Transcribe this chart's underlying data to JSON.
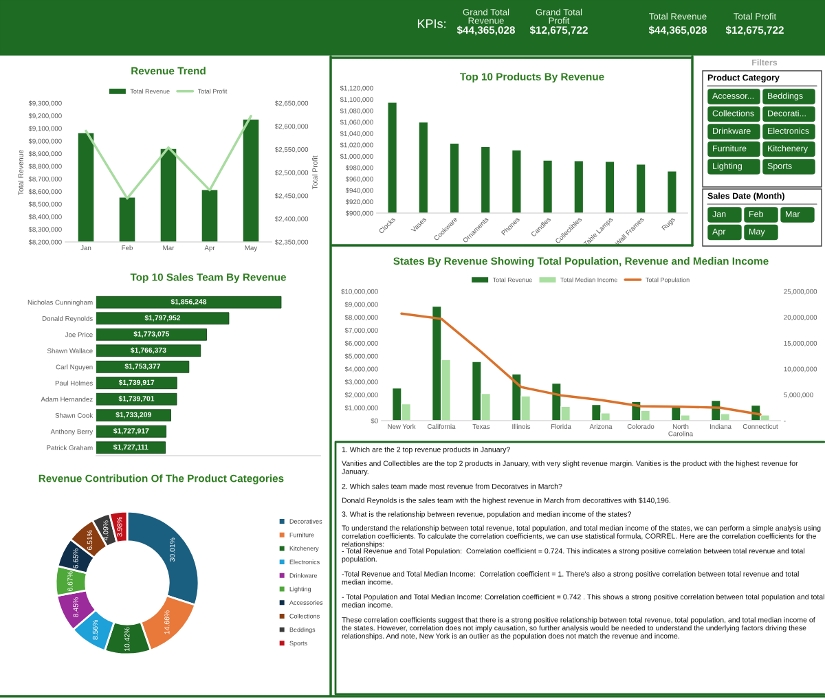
{
  "chart_data": [
    {
      "type": "other",
      "title": "KPIs:",
      "annotations": [
        "Grand Total\nRevenue",
        "$44,365,028",
        "Grand Total\nProfit",
        "$12,675,722",
        "Total Revenue",
        "$44,365,028",
        "Total Profit",
        "$12,675,722"
      ]
    },
    {
      "type": "bar",
      "title": "Revenue Trend",
      "ylabel": "Total Revenue",
      "y2label": "Total Profit",
      "categories": [
        "Jan",
        "Feb",
        "Mar",
        "Apr",
        "May"
      ],
      "series": [
        {
          "name": "Total Revenue",
          "color": "#1e6b23",
          "values": [
            9065000,
            8555000,
            8940000,
            8615000,
            9173000
          ]
        },
        {
          "name": "Total Profit",
          "type": "line",
          "axis": "y2",
          "color": "#a8dba0",
          "values": [
            2590000,
            2444000,
            2554000,
            2462000,
            2622000
          ]
        }
      ],
      "ylim": [
        8200000,
        9300000
      ],
      "yticks": [
        {
          "value": 8200000,
          "label": "$8,200,000"
        },
        {
          "value": 8300000,
          "label": "$8,300,000"
        },
        {
          "value": 8400000,
          "label": "$8,400,000"
        },
        {
          "value": 8500000,
          "label": "$8,500,000"
        },
        {
          "value": 8600000,
          "label": "$8,600,000"
        },
        {
          "value": 8700000,
          "label": "$8,700,000"
        },
        {
          "value": 8800000,
          "label": "$8,800,000"
        },
        {
          "value": 8900000,
          "label": "$8,900,000"
        },
        {
          "value": 9000000,
          "label": "$9,000,000"
        },
        {
          "value": 9100000,
          "label": "$9,100,000"
        },
        {
          "value": 9200000,
          "label": "$9,200,000"
        },
        {
          "value": 9300000,
          "label": "$9,300,000"
        }
      ],
      "y2lim": [
        2350000,
        2650000
      ],
      "y2ticks": [
        {
          "value": 2350000,
          "label": "$2,350,000"
        },
        {
          "value": 2400000,
          "label": "$2,400,000"
        },
        {
          "value": 2450000,
          "label": "$2,450,000"
        },
        {
          "value": 2500000,
          "label": "$2,500,000"
        },
        {
          "value": 2550000,
          "label": "$2,550,000"
        },
        {
          "value": 2600000,
          "label": "$2,600,000"
        },
        {
          "value": 2650000,
          "label": "$2,650,000"
        }
      ],
      "legend": "top"
    },
    {
      "type": "bar",
      "title": "Top 10 Products By Revenue",
      "categories": [
        "Clocks",
        "Vases",
        "Cookware",
        "Ornaments",
        "Phones",
        "Candles",
        "Collectibles",
        "Table Lamps",
        "Wall Frames",
        "Rugs"
      ],
      "values": [
        1095000,
        1060000,
        1023000,
        1017000,
        1011000,
        993000,
        992000,
        991000,
        986000,
        974000
      ],
      "color": "#1e6b23",
      "ylim": [
        900000,
        1120000
      ],
      "yticks": [
        {
          "value": 900000,
          "label": "$900,000"
        },
        {
          "value": 920000,
          "label": "$920,000"
        },
        {
          "value": 940000,
          "label": "$940,000"
        },
        {
          "value": 960000,
          "label": "$960,000"
        },
        {
          "value": 980000,
          "label": "$980,000"
        },
        {
          "value": 1000000,
          "label": "$1,000,000"
        },
        {
          "value": 1020000,
          "label": "$1,020,000"
        },
        {
          "value": 1040000,
          "label": "$1,040,000"
        },
        {
          "value": 1060000,
          "label": "$1,060,000"
        },
        {
          "value": 1080000,
          "label": "$1,080,000"
        },
        {
          "value": 1100000,
          "label": "$1,100,000"
        },
        {
          "value": 1120000,
          "label": "$1,120,000"
        }
      ]
    },
    {
      "type": "other",
      "title": "Filters",
      "subtitle": "Product Category",
      "annotations": [
        "Accessor...",
        "Beddings",
        "Collections",
        "Decorati...",
        "Drinkware",
        "Electronics",
        "Furniture",
        "Kitchenery",
        "Lighting",
        "Sports"
      ]
    },
    {
      "type": "other",
      "subtitle": "Sales Date (Month)",
      "annotations": [
        "Jan",
        "Feb",
        "Mar",
        "Apr",
        "May"
      ]
    },
    {
      "type": "bar",
      "orientation": "horizontal",
      "title": "Top 10 Sales Team By Revenue",
      "categories": [
        "Nicholas Cunningham",
        "Donald Reynolds",
        "Joe Price",
        "Shawn Wallace",
        "Carl Nguyen",
        "Paul Holmes",
        "Adam Hernandez",
        "Shawn Cook",
        "Anthony Berry",
        "Patrick Graham"
      ],
      "values": [
        1856248,
        1797952,
        1773075,
        1766373,
        1753377,
        1739917,
        1739701,
        1733209,
        1727917,
        1727111
      ],
      "color": "#1e6b23",
      "value_labels": [
        "$1,856,248",
        "$1,797,952",
        "$1,773,075",
        "$1,766,373",
        "$1,753,377",
        "$1,739,917",
        "$1,739,701",
        "$1,733,209",
        "$1,727,917",
        "$1,727,111"
      ],
      "xlim": [
        1650000,
        1900000
      ],
      "tick_labels": "y"
    },
    {
      "type": "bar",
      "title": "States By Revenue Showing Total Population, Revenue and Median Income",
      "categories": [
        "New York",
        "California",
        "Texas",
        "Illinois",
        "Florida",
        "Arizona",
        "Colorado",
        "North\nCarolina",
        "Indiana",
        "Connecticut"
      ],
      "series": [
        {
          "name": "Total Revenue",
          "color": "#1e6b23",
          "values": [
            2520000,
            8850000,
            4570000,
            3620000,
            2890000,
            1250000,
            1470000,
            1050000,
            1560000,
            1200000
          ]
        },
        {
          "name": "Total Median Income",
          "color": "#a9dfa0",
          "values": [
            1300000,
            4720000,
            2100000,
            1910000,
            1100000,
            590000,
            780000,
            440000,
            540000,
            440000
          ]
        },
        {
          "name": "Total Population",
          "type": "line",
          "axis": "y2",
          "color": "#d9722c",
          "values": [
            20700000,
            19700000,
            13300000,
            6500000,
            4900000,
            4000000,
            2800000,
            2700000,
            2500000,
            1200000
          ]
        }
      ],
      "ylim": [
        0,
        10000000
      ],
      "yticks": [
        {
          "value": 0,
          "label": "$0"
        },
        {
          "value": 1000000,
          "label": "$1,000,000"
        },
        {
          "value": 2000000,
          "label": "$2,000,000"
        },
        {
          "value": 3000000,
          "label": "$3,000,000"
        },
        {
          "value": 4000000,
          "label": "$4,000,000"
        },
        {
          "value": 5000000,
          "label": "$5,000,000"
        },
        {
          "value": 6000000,
          "label": "$6,000,000"
        },
        {
          "value": 7000000,
          "label": "$7,000,000"
        },
        {
          "value": 8000000,
          "label": "$8,000,000"
        },
        {
          "value": 9000000,
          "label": "$9,000,000"
        },
        {
          "value": 10000000,
          "label": "$10,000,000"
        }
      ],
      "y2lim": [
        0,
        25000000
      ],
      "y2ticks": [
        {
          "value": 0,
          "label": "-"
        },
        {
          "value": 5000000,
          "label": "5,000,000"
        },
        {
          "value": 10000000,
          "label": "10,000,000"
        },
        {
          "value": 15000000,
          "label": "15,000,000"
        },
        {
          "value": 20000000,
          "label": "20,000,000"
        },
        {
          "value": 25000000,
          "label": "25,000,000"
        }
      ],
      "legend": "top"
    },
    {
      "type": "donut",
      "title": "Revenue Contribution Of The Product Categories",
      "categories": [
        "Decoratives",
        "Furniture",
        "Kitchenery",
        "Electronics",
        "Drinkware",
        "Lighting",
        "Accessories",
        "Collections",
        "Beddings",
        "Sports"
      ],
      "values": [
        30.01,
        14.66,
        10.42,
        8.56,
        8.45,
        6.67,
        6.65,
        6.51,
        4.09,
        3.98
      ],
      "value_labels": [
        "30.01%",
        "14.66%",
        "10.42%",
        "8.56%",
        "8.45%",
        "6.67%",
        "6.65%",
        "6.51%",
        "4.09%",
        "3.98%"
      ],
      "colors": [
        "#1a5e80",
        "#e8793a",
        "#1e6b23",
        "#1ea0d8",
        "#9b2a9a",
        "#4fa83a",
        "#0f2f4a",
        "#8a3d10",
        "#3a3a3a",
        "#c0101a"
      ],
      "legend": "right"
    },
    {
      "type": "other",
      "annotations": [
        "1. Which are the 2 top revenue products in January?",
        "Vanities and Collectibles are the top 2 products in January, with very slight revenue margin. Vanities is the product with the highest revenue for January.",
        "2. Which sales team made most revenue from Decoratves in March?",
        "Donald Reynolds is the sales team with the highest revenue in March from decorattives with $140,196.",
        "3. What is the relationship between revenue, population and median income of the states?",
        "To understand the relationship between total revenue, total population, and total median income of the states, we can perform a simple analysis using correlation coefficients. To calculate the correlation coefficients, we can use statistical formula, CORREL. Here are the correlation coefficients for the relationships:",
        "- Total Revenue and Total Population:  Correlation coefficient = 0.724. This indicates a strong positive correlation between total revenue and total population.",
        "-Total Revenue and Total Median Income:  Correlation coefficient = 1. There's also a strong positive correlation between total revenue and total median income.",
        "- Total Population and Total Median Income: Correlation coefficient = 0.742 . This shows a strong positive correlation between total population and total median income.",
        "These correlation coefficients suggest that there is a strong positive relationship between total revenue, total population, and total median income of the states. However, correlation does not imply causation, so further analysis would be needed to understand the underlying factors driving these relationships. And note, New York is an outlier as the population does not match the revenue and income."
      ]
    }
  ]
}
